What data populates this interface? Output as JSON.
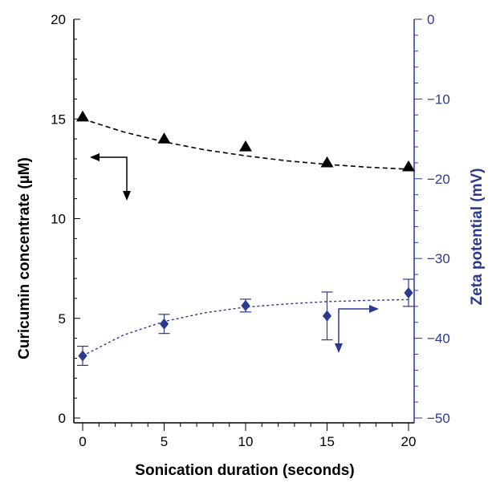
{
  "chart_data": {
    "type": "scatter",
    "title": "",
    "xlabel": "Sonication duration (seconds)",
    "ylabel": "Curicumin concentrate (µM)",
    "y2label": "Zeta potential (mV)",
    "xlim": [
      0,
      20
    ],
    "ylim": [
      0,
      20
    ],
    "y2lim": [
      -50,
      0
    ],
    "x_ticks": [
      0,
      5,
      10,
      15,
      20
    ],
    "y_ticks": [
      0,
      5,
      10,
      15,
      20
    ],
    "y2_ticks": [
      0,
      -10,
      -20,
      -30,
      -40,
      -50
    ],
    "x_tick_labels": [
      "0",
      "5",
      "10",
      "15",
      "20"
    ],
    "y_tick_labels": [
      "0",
      "5",
      "10",
      "15",
      "20"
    ],
    "y2_tick_labels": [
      "0",
      "−10",
      "−20",
      "−30",
      "−40",
      "−50"
    ],
    "grid": false,
    "series": [
      {
        "axis": "left",
        "marker": "triangle",
        "color": "#000000",
        "x": [
          0,
          5,
          10,
          15,
          20
        ],
        "y": [
          15.1,
          14.0,
          13.6,
          12.8,
          12.6
        ],
        "fit_x": [
          0,
          2.5,
          5,
          7.5,
          10,
          12.5,
          15,
          17.5,
          20
        ],
        "fit_y": [
          15.0,
          14.35,
          13.85,
          13.45,
          13.15,
          12.9,
          12.72,
          12.58,
          12.48
        ]
      },
      {
        "axis": "right",
        "marker": "diamond",
        "color": "#2b3a8f",
        "x": [
          0,
          5,
          10,
          15,
          20
        ],
        "y": [
          -42.2,
          -38.2,
          -35.9,
          -37.2,
          -34.3
        ],
        "err": [
          1.2,
          1.2,
          0.8,
          3.0,
          1.7
        ],
        "fit_x": [
          0,
          2.5,
          5,
          7.5,
          10,
          12.5,
          15,
          17.5,
          20
        ],
        "fit_y": [
          -42.2,
          -39.6,
          -37.9,
          -36.8,
          -36.1,
          -35.7,
          -35.4,
          -35.25,
          -35.15
        ]
      }
    ],
    "annotations": [
      {
        "type": "arrow",
        "points_to": "left-axis",
        "color": "#000000"
      },
      {
        "type": "arrow",
        "points_to": "right-axis",
        "color": "#2b3a8f"
      }
    ]
  }
}
